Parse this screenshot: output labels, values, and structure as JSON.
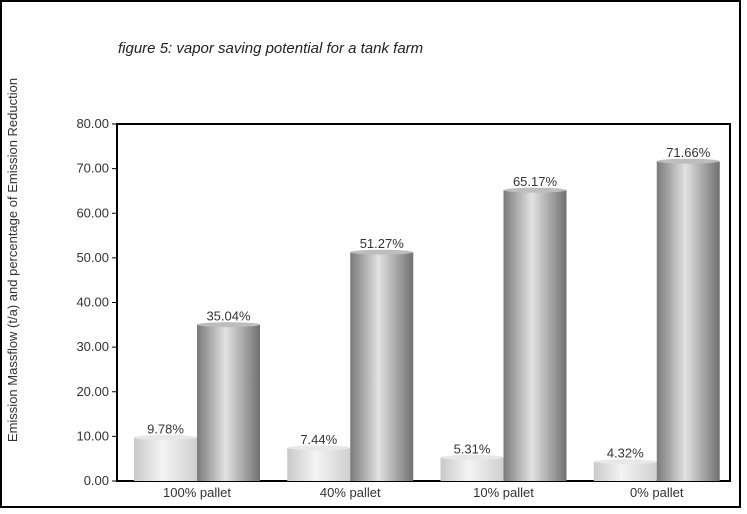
{
  "chart_data": {
    "type": "bar",
    "title": "figure 5: vapor saving potential for a tank farm",
    "ylabel": "Emission Massflow (t/a) and percentage of Emission Reduction",
    "xlabel": "",
    "ylim": [
      0,
      80
    ],
    "yticks": [
      "0.00",
      "10.00",
      "20.00",
      "30.00",
      "40.00",
      "50.00",
      "60.00",
      "70.00",
      "80.00"
    ],
    "categories": [
      "100% pallet",
      "40% pallet",
      "10% pallet",
      "0% pallet"
    ],
    "series": [
      {
        "values": [
          9.78,
          7.44,
          5.31,
          4.32
        ],
        "labels": [
          "9.78%",
          "7.44%",
          "5.31%",
          "4.32%"
        ],
        "color": "#d9d9d9"
      },
      {
        "values": [
          35.04,
          51.27,
          65.17,
          71.66
        ],
        "labels": [
          "35.04%",
          "51.27%",
          "65.17%",
          "71.66%"
        ],
        "color": "#9a9a9a"
      }
    ],
    "grid": false,
    "legend": "none"
  }
}
